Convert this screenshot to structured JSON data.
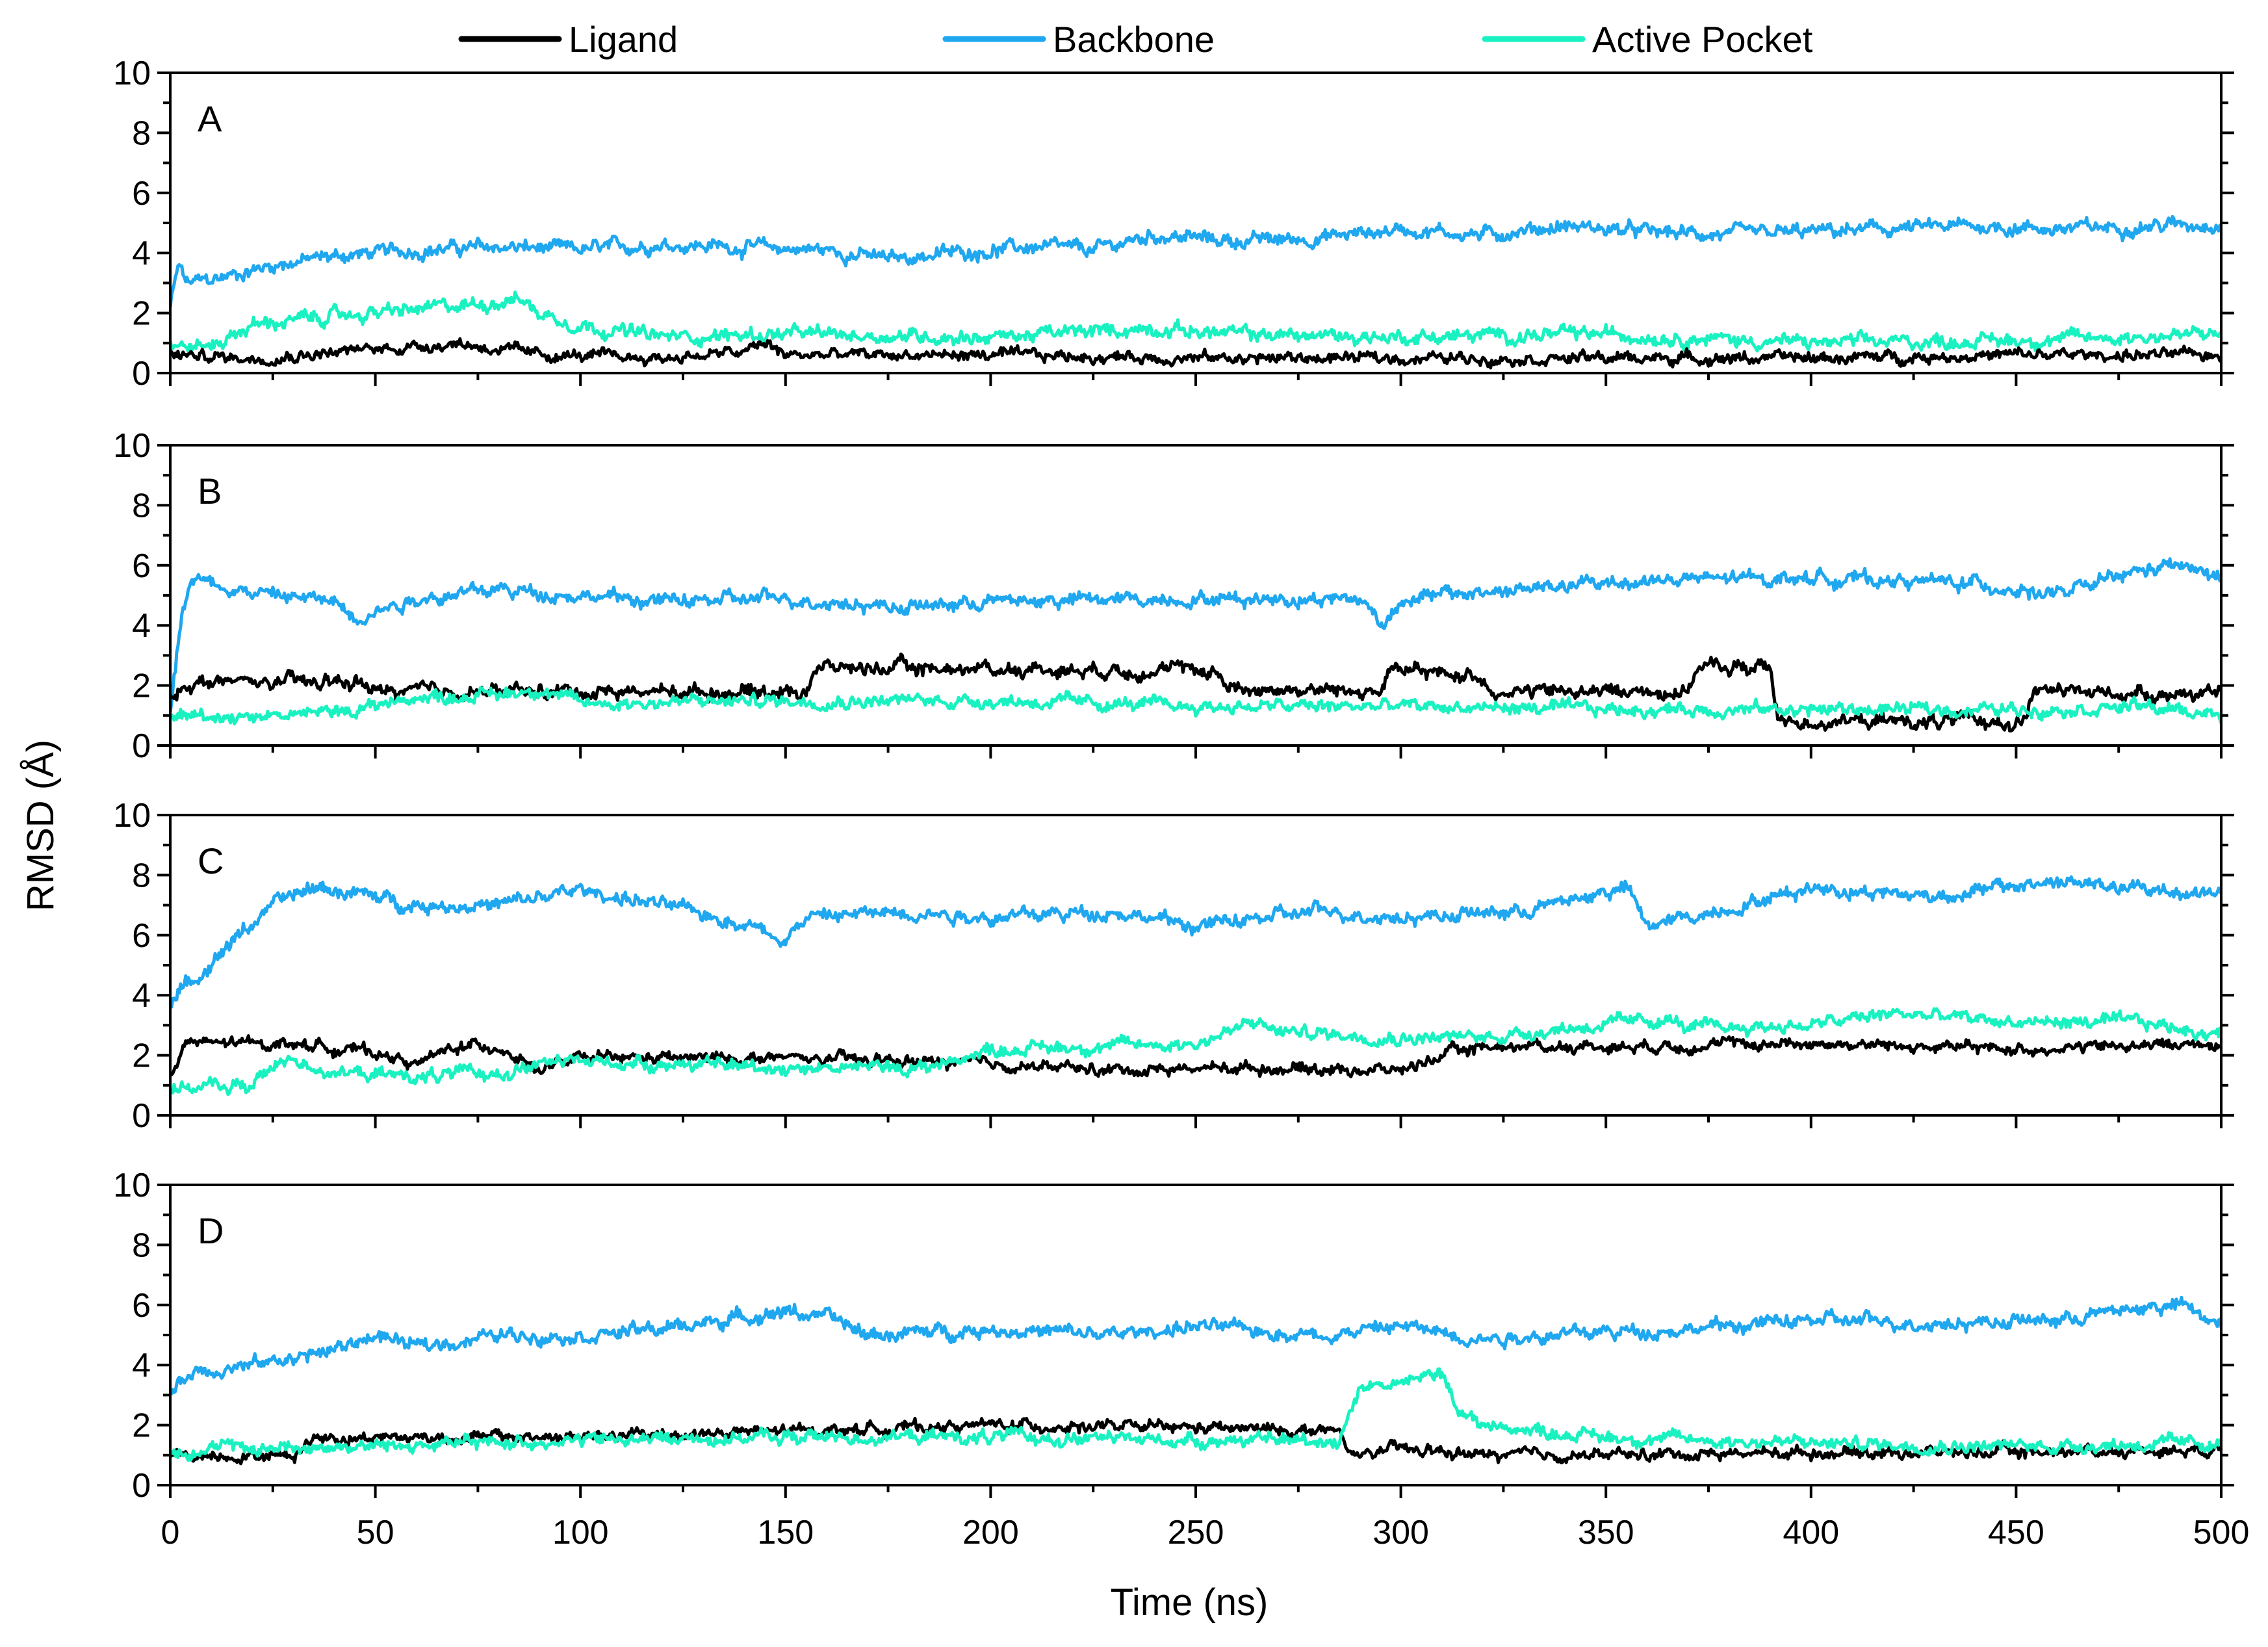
{
  "chart_data": {
    "type": "line",
    "xlabel": "Time (ns)",
    "ylabel": "RMSD (Å)",
    "xlim": [
      0,
      500
    ],
    "ylim": [
      0,
      10
    ],
    "xticks": [
      "0",
      "50",
      "100",
      "150",
      "200",
      "250",
      "300",
      "350",
      "400",
      "450",
      "500"
    ],
    "yticks": [
      "0",
      "2",
      "4",
      "6",
      "8",
      "10"
    ],
    "legend": {
      "placement": "top-center",
      "entries": [
        {
          "name": "Ligand",
          "color": "#000000"
        },
        {
          "name": "Backbone",
          "color": "#1FA7EF"
        },
        {
          "name": "Active Pocket",
          "color": "#19F2C0"
        }
      ]
    },
    "panels": [
      {
        "label": "A",
        "series": [
          {
            "name": "Backbone",
            "color": "#1FA7EF",
            "noise": 0.16,
            "x": [
              0,
              2,
              4,
              10,
              25,
              40,
              60,
              80,
              100,
              120,
              140,
              160,
              175,
              190,
              210,
              225,
              240,
              260,
              280,
              300,
              320,
              340,
              360,
              380,
              400,
              420,
              440,
              460,
              480,
              500
            ],
            "y": [
              2.2,
              3.6,
              3.0,
              3.1,
              3.6,
              3.9,
              4.1,
              4.2,
              4.1,
              4.3,
              4.2,
              4.1,
              3.8,
              4.0,
              4.2,
              4.1,
              4.6,
              4.4,
              4.5,
              4.8,
              4.6,
              4.9,
              4.7,
              4.6,
              4.7,
              4.8,
              4.9,
              4.8,
              4.9,
              5.0
            ]
          },
          {
            "name": "Active Pocket",
            "color": "#19F2C0",
            "noise": 0.16,
            "x": [
              0,
              10,
              20,
              40,
              60,
              75,
              85,
              90,
              100,
              120,
              150,
              200,
              240,
              260,
              300,
              350,
              400,
              450,
              500
            ],
            "y": [
              0.9,
              0.9,
              1.6,
              1.9,
              2.1,
              2.3,
              2.5,
              2.0,
              1.6,
              1.2,
              1.3,
              1.2,
              1.5,
              1.3,
              1.2,
              1.3,
              1.0,
              1.1,
              1.3
            ]
          },
          {
            "name": "Ligand",
            "color": "#000000",
            "noise": 0.13,
            "x": [
              0,
              20,
              40,
              60,
              70,
              90,
              120,
              140,
              145,
              150,
              200,
              250,
              300,
              350,
              400,
              450,
              500
            ],
            "y": [
              0.6,
              0.5,
              0.7,
              0.9,
              1.0,
              0.6,
              0.5,
              0.7,
              1.0,
              0.6,
              0.6,
              0.5,
              0.5,
              0.5,
              0.5,
              0.6,
              0.6
            ]
          }
        ]
      },
      {
        "label": "B",
        "series": [
          {
            "name": "Backbone",
            "color": "#1FA7EF",
            "noise": 0.16,
            "x": [
              0,
              3,
              5,
              20,
              40,
              45,
              60,
              80,
              100,
              120,
              150,
              180,
              200,
              250,
              290,
              296,
              300,
              330,
              360,
              400,
              440,
              460,
              480,
              490,
              500
            ],
            "y": [
              1.2,
              4.6,
              5.6,
              5.1,
              4.8,
              4.3,
              4.9,
              5.2,
              5.0,
              4.8,
              4.9,
              4.6,
              4.8,
              4.9,
              4.9,
              4.0,
              4.9,
              5.2,
              5.5,
              5.6,
              5.4,
              5.0,
              5.8,
              6.0,
              5.5
            ]
          },
          {
            "name": "Ligand",
            "color": "#000000",
            "noise": 0.16,
            "x": [
              0,
              4,
              47,
              49,
              155,
              157,
              255,
              258,
              295,
              297,
              320,
              322,
              370,
              372,
              390,
              392,
              452,
              454,
              500
            ],
            "y": [
              1.5,
              2.1,
              2.1,
              1.8,
              1.8,
              2.6,
              2.5,
              1.9,
              1.8,
              2.5,
              2.3,
              1.8,
              1.8,
              2.6,
              2.6,
              0.8,
              0.8,
              1.8,
              1.7
            ]
          },
          {
            "name": "Active Pocket",
            "color": "#19F2C0",
            "noise": 0.15,
            "x": [
              0,
              20,
              40,
              60,
              80,
              90,
              100,
              150,
              200,
              250,
              300,
              350,
              400,
              450,
              480,
              500
            ],
            "y": [
              1.0,
              1.0,
              1.1,
              1.6,
              1.7,
              1.9,
              1.4,
              1.5,
              1.5,
              1.3,
              1.3,
              1.2,
              1.2,
              1.2,
              1.3,
              1.0
            ]
          }
        ]
      },
      {
        "label": "C",
        "series": [
          {
            "name": "Backbone",
            "color": "#1FA7EF",
            "noise": 0.16,
            "x": [
              0,
              5,
              15,
              25,
              35,
              45,
              60,
              80,
              100,
              120,
              140,
              150,
              155,
              180,
              200,
              230,
              250,
              280,
              300,
              330,
              355,
              360,
              380,
              400,
              430,
              460,
              480,
              500
            ],
            "y": [
              3.8,
              4.4,
              5.8,
              7.0,
              7.6,
              7.4,
              7.0,
              7.0,
              7.5,
              7.0,
              6.4,
              5.9,
              6.6,
              6.8,
              6.6,
              6.8,
              6.3,
              6.8,
              6.6,
              6.8,
              7.6,
              6.3,
              6.9,
              7.6,
              7.3,
              7.8,
              7.5,
              7.4
            ]
          },
          {
            "name": "Ligand",
            "color": "#000000",
            "noise": 0.13,
            "x": [
              0,
              4,
              30,
              50,
              60,
              70,
              80,
              90,
              100,
              150,
              180,
              200,
              230,
              260,
              300,
              310,
              320,
              350,
              400,
              450,
              500
            ],
            "y": [
              1.4,
              2.4,
              2.4,
              2.1,
              1.7,
              2.3,
              2.3,
              1.5,
              1.9,
              1.9,
              1.8,
              1.7,
              1.5,
              1.6,
              1.5,
              2.0,
              2.3,
              2.3,
              2.4,
              2.2,
              2.4
            ]
          },
          {
            "name": "Active Pocket",
            "color": "#19F2C0",
            "noise": 0.15,
            "x": [
              0,
              20,
              25,
              30,
              40,
              60,
              80,
              90,
              100,
              150,
              185,
              200,
              250,
              265,
              270,
              300,
              320,
              340,
              365,
              370,
              400,
              420,
              450,
              480,
              500
            ],
            "y": [
              0.9,
              1.0,
              1.6,
              1.9,
              1.4,
              1.3,
              1.4,
              1.7,
              1.8,
              1.6,
              1.6,
              2.2,
              2.4,
              3.1,
              2.8,
              2.6,
              2.6,
              2.9,
              3.2,
              2.9,
              3.0,
              3.4,
              3.1,
              3.1,
              2.7
            ]
          }
        ]
      },
      {
        "label": "D",
        "series": [
          {
            "name": "Backbone",
            "color": "#1FA7EF",
            "noise": 0.16,
            "x": [
              0,
              5,
              20,
              40,
              50,
              60,
              80,
              100,
              120,
              140,
              150,
              160,
              170,
              200,
              230,
              250,
              280,
              300,
              320,
              350,
              370,
              400,
              430,
              460,
              480,
              490,
              500
            ],
            "y": [
              3.0,
              3.8,
              4.0,
              4.5,
              5.0,
              4.6,
              5.0,
              5.0,
              5.2,
              5.6,
              5.8,
              5.6,
              5.0,
              5.2,
              5.0,
              5.3,
              5.0,
              5.3,
              4.9,
              5.1,
              5.2,
              5.5,
              5.4,
              5.5,
              5.9,
              6.0,
              5.3
            ]
          },
          {
            "name": "Ligand",
            "color": "#000000",
            "noise": 0.13,
            "x": [
              0,
              30,
              35,
              100,
              150,
              200,
              250,
              285,
              287,
              300,
              310,
              320,
              350,
              400,
              450,
              500
            ],
            "y": [
              1.0,
              1.0,
              1.6,
              1.6,
              1.8,
              2.0,
              1.9,
              1.8,
              1.0,
              1.2,
              1.1,
              1.0,
              1.0,
              1.1,
              1.1,
              1.2
            ]
          },
          {
            "name": "Active Pocket",
            "color": "#19F2C0",
            "noise": 0.15,
            "x": [
              0,
              50,
              100,
              150,
              200,
              250,
              285,
              290,
              300,
              310,
              315,
              320,
              350,
              400,
              450,
              500
            ],
            "y": [
              1.2,
              1.3,
              1.5,
              1.6,
              1.6,
              1.5,
              1.5,
              3.3,
              3.4,
              3.7,
              2.4,
              2.0,
              1.6,
              1.4,
              1.3,
              1.4
            ]
          }
        ]
      }
    ]
  }
}
